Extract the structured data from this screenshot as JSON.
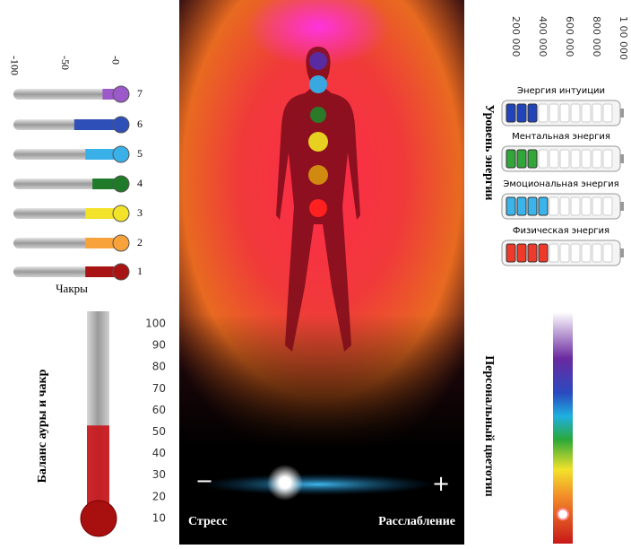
{
  "chakras": {
    "title": "Чакры",
    "scale": {
      "range": [
        -100,
        0
      ],
      "ticks": [
        {
          "value": -100,
          "label": "-100"
        },
        {
          "value": -50,
          "label": "-50"
        },
        {
          "value": 0,
          "label": "-0"
        }
      ]
    },
    "items": [
      {
        "label": "7",
        "color": "#9b59c9",
        "value": -12
      },
      {
        "label": "6",
        "color": "#2f4fb8",
        "value": -40
      },
      {
        "label": "5",
        "color": "#3ab0e8",
        "value": -29
      },
      {
        "label": "4",
        "color": "#1f7a2a",
        "value": -22
      },
      {
        "label": "3",
        "color": "#f2e22a",
        "value": -29
      },
      {
        "label": "2",
        "color": "#f7a23a",
        "value": -29
      },
      {
        "label": "1",
        "color": "#a81414",
        "value": -29
      }
    ]
  },
  "balance": {
    "title": "Баланс ауры и чакр",
    "range": [
      0,
      100
    ],
    "ticks": [
      10,
      20,
      30,
      40,
      50,
      60,
      70,
      80,
      90,
      100
    ],
    "value": 53
  },
  "energy": {
    "title": "Уровень энергии",
    "scale_ticks": [
      "200 000",
      "400 000",
      "600 000",
      "800 000",
      "1 00 000"
    ],
    "cells": 10,
    "bars": [
      {
        "label": "Энергия интуиции",
        "color": "#2244bb",
        "filled": 3
      },
      {
        "label": "Ментальная энергия",
        "color": "#33a63a",
        "filled": 3
      },
      {
        "label": "Эмоциональная энергия",
        "color": "#3ab4ea",
        "filled": 4
      },
      {
        "label": "Физическая энергия",
        "color": "#ee3a2a",
        "filled": 4
      }
    ]
  },
  "stress": {
    "left": "Стресс",
    "right": "Расслабление",
    "minus": "−",
    "plus": "+",
    "range": [
      0,
      100
    ],
    "position": 36
  },
  "colortype": {
    "title": "Персональный цветотип",
    "range": [
      0,
      100
    ],
    "position": 12
  }
}
